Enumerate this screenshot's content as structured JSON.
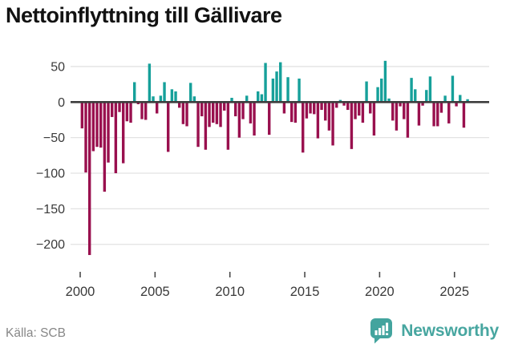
{
  "page": {
    "title": "Nettoinflyttning till Gällivare",
    "source": "Källa: SCB",
    "brand": {
      "name": "Newsworthy"
    }
  },
  "colors": {
    "positive_bar": "#16a09a",
    "negative_bar": "#99104e",
    "grid_line": "#e2e2e2",
    "zero_line": "#3d3d3d",
    "axis_text": "#3a3a3a",
    "tick_mark": "#4a4a4a",
    "title_text": "#121212",
    "source_text": "#878787",
    "brand_teal": "#47a6a0",
    "brand_icon_bg": "#43a49e"
  },
  "chart_data": {
    "type": "bar",
    "title": "Nettoinflyttning till Gällivare",
    "frequency": "quarterly",
    "start_year": 2000,
    "values": [
      -37,
      -99,
      -215,
      -69,
      -63,
      -64,
      -126,
      -85,
      -21,
      -100,
      -14,
      -86,
      -27,
      -29,
      28,
      -3,
      -24,
      -25,
      54,
      8,
      -16,
      9,
      28,
      -70,
      18,
      15,
      -8,
      -31,
      -34,
      27,
      8,
      -63,
      -20,
      -67,
      -35,
      -29,
      -31,
      -35,
      -12,
      -67,
      6,
      -20,
      -50,
      -24,
      9,
      -30,
      -47,
      15,
      11,
      55,
      -46,
      33,
      43,
      56,
      -16,
      35,
      -28,
      -29,
      33,
      -71,
      -23,
      -16,
      -17,
      -51,
      -11,
      -26,
      -40,
      -61,
      -8,
      3,
      -5,
      -11,
      -66,
      -24,
      -19,
      -29,
      29,
      -16,
      -47,
      21,
      33,
      58,
      5,
      -26,
      -40,
      -6,
      -24,
      -50,
      34,
      18,
      -33,
      -5,
      17,
      36,
      -34,
      -34,
      -15,
      9,
      -30,
      37,
      -6,
      10,
      -36,
      4
    ],
    "y_ticks": [
      50,
      0,
      -50,
      -100,
      -150,
      -200
    ],
    "x_ticks": [
      2000,
      2005,
      2010,
      2015,
      2020,
      2025
    ],
    "ylim": [
      -240,
      64
    ],
    "grid": "horizontal-only",
    "legend": "none"
  }
}
